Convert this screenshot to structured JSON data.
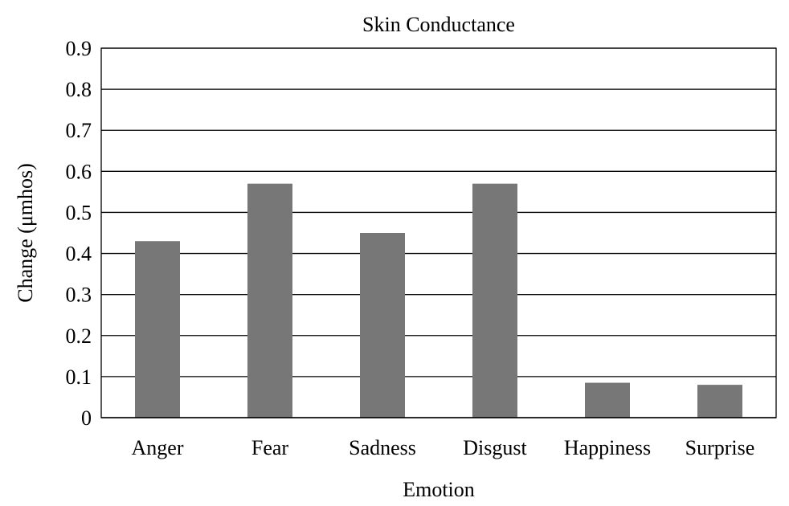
{
  "chart_data": {
    "type": "bar",
    "title": "Skin Conductance",
    "xlabel": "Emotion",
    "ylabel": "Change (μmhos)",
    "categories": [
      "Anger",
      "Fear",
      "Sadness",
      "Disgust",
      "Happiness",
      "Surprise"
    ],
    "values": [
      0.43,
      0.57,
      0.45,
      0.57,
      0.085,
      0.08
    ],
    "ylim": [
      0,
      0.9
    ],
    "yticks": [
      "0",
      "0.1",
      "0.2",
      "0.3",
      "0.4",
      "0.5",
      "0.6",
      "0.7",
      "0.8",
      "0.9"
    ],
    "grid": true,
    "legend": "none",
    "colors": {
      "bar": "#777777",
      "gridline": "#000000"
    }
  }
}
